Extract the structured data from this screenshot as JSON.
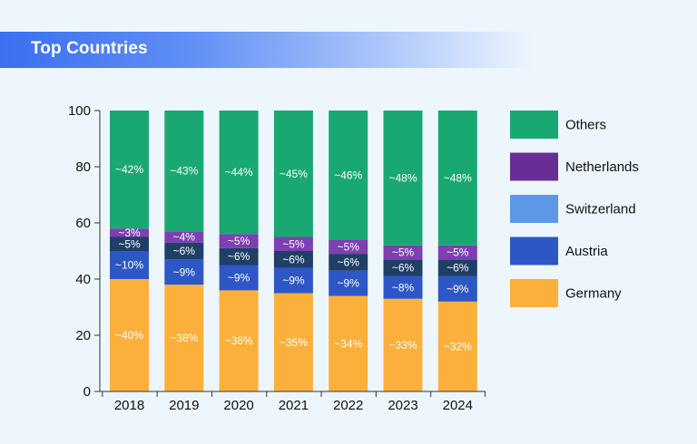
{
  "chart_data": {
    "type": "bar",
    "stacked": true,
    "title": "Top Countries",
    "categories": [
      "2018",
      "2019",
      "2020",
      "2021",
      "2022",
      "2023",
      "2024"
    ],
    "ylim": [
      0,
      100
    ],
    "yticks": [
      "0",
      "20",
      "40",
      "60",
      "80",
      "100"
    ],
    "ytick_values": [
      0,
      20,
      40,
      60,
      80,
      100
    ],
    "legend_position": "right",
    "series": [
      {
        "name": "Germany",
        "color": "#fbb03b",
        "label_color": "#ffffff",
        "values": [
          40,
          38,
          36,
          35,
          34,
          33,
          32
        ],
        "labels": [
          "~40%",
          "~38%",
          "~36%",
          "~35%",
          "~34%",
          "~33%",
          "~32%"
        ]
      },
      {
        "name": "Austria",
        "color": "#2e57c6",
        "label_color": "#ffffff",
        "values": [
          10,
          9,
          9,
          9,
          9,
          8,
          9
        ],
        "labels": [
          "~10%",
          "~9%",
          "~9%",
          "~9%",
          "~9%",
          "~8%",
          "~9%"
        ]
      },
      {
        "name": "Switzerland",
        "color": "#5c97e8",
        "label_color": "#ffffff",
        "values": [
          0,
          0,
          0,
          0,
          0,
          0,
          0
        ],
        "labels": []
      },
      {
        "name": "",
        "color": "#1f3f66",
        "label_color": "#ffffff",
        "legend": false,
        "values": [
          5,
          6,
          6,
          6,
          6,
          6,
          6
        ],
        "labels": [
          "~5%",
          "~6%",
          "~6%",
          "~6%",
          "~6%",
          "~6%",
          "~6%"
        ]
      },
      {
        "name": "Netherlands",
        "color": "#7d3fb2",
        "label_color": "#ffffff",
        "values": [
          3,
          4,
          5,
          5,
          5,
          5,
          5
        ],
        "labels": [
          "~3%",
          "~4%",
          "~5%",
          "~5%",
          "~5%",
          "~5%",
          "~5%"
        ]
      },
      {
        "name": "Others",
        "color": "#1aa872",
        "label_color": "#ffffff",
        "values": [
          42,
          43,
          44,
          45,
          46,
          48,
          48
        ],
        "labels": [
          "~42%",
          "~43%",
          "~44%",
          "~45%",
          "~46%",
          "~48%",
          "~48%"
        ]
      }
    ],
    "legend": [
      {
        "name": "Others",
        "color": "#1aa872"
      },
      {
        "name": "Netherlands",
        "color": "#6a2d96"
      },
      {
        "name": "Switzerland",
        "color": "#5c97e8"
      },
      {
        "name": "Austria",
        "color": "#2e57c6"
      },
      {
        "name": "Germany",
        "color": "#fbb03b"
      }
    ]
  }
}
